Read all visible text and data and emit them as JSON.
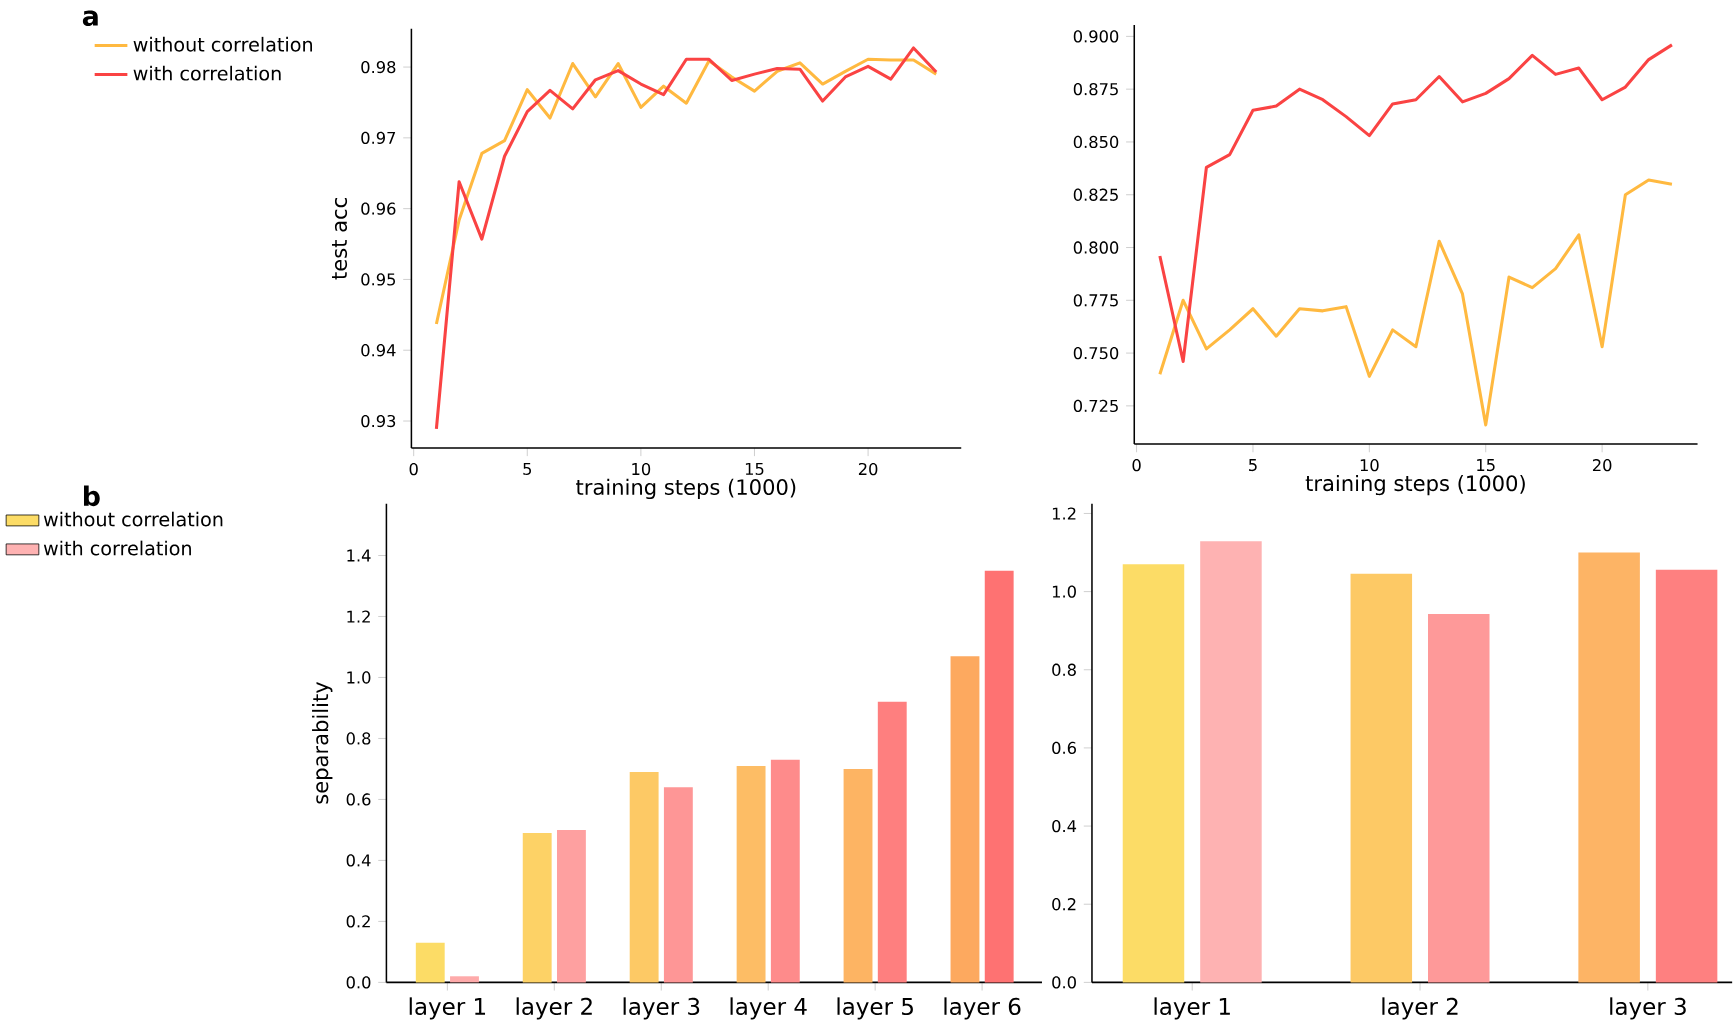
{
  "chart_data": [
    {
      "type": "line",
      "ylabel": "test acc",
      "xlabel": "training steps (1000)",
      "annotations": [
        "a"
      ],
      "legend": "top left",
      "xlim": [
        -0.1,
        24.1
      ],
      "ylim": [
        0.9262,
        0.9854
      ],
      "xticks": [
        0,
        5,
        10,
        15,
        20
      ],
      "yticks": [
        {
          "value": 0.93,
          "label": "0.93"
        },
        {
          "value": 0.94,
          "label": "0.94"
        },
        {
          "value": 0.95,
          "label": "0.95"
        },
        {
          "value": 0.96,
          "label": "0.96"
        },
        {
          "value": 0.97,
          "label": "0.97"
        },
        {
          "value": 0.98,
          "label": "0.98"
        }
      ],
      "x": [
        1,
        2,
        3,
        4,
        5,
        6,
        7,
        8,
        9,
        10,
        11,
        12,
        13,
        14,
        15,
        16,
        17,
        18,
        19,
        20,
        21,
        22,
        23
      ],
      "series": [
        {
          "name": "without correlation",
          "color": "#ffb940",
          "values": [
            0.9437,
            0.9584,
            0.9678,
            0.9696,
            0.9768,
            0.9728,
            0.9805,
            0.9758,
            0.9805,
            0.9743,
            0.9773,
            0.9749,
            0.9809,
            0.9786,
            0.9766,
            0.9794,
            0.9806,
            0.9776,
            0.9794,
            0.9811,
            0.981,
            0.981,
            0.979
          ]
        },
        {
          "name": "with correlation",
          "color": "#fa4343",
          "values": [
            0.9289,
            0.9638,
            0.9557,
            0.9674,
            0.9737,
            0.9767,
            0.9741,
            0.9782,
            0.9795,
            0.9776,
            0.9761,
            0.9811,
            0.9811,
            0.9781,
            0.979,
            0.9798,
            0.9797,
            0.9752,
            0.9786,
            0.9801,
            0.9783,
            0.9827,
            0.9793
          ]
        }
      ]
    },
    {
      "type": "line",
      "xlabel": "training steps (1000)",
      "xlim": [
        -0.1,
        24.1
      ],
      "ylim": [
        0.7069,
        0.9054
      ],
      "xticks": [
        0,
        5,
        10,
        15,
        20
      ],
      "yticks": [
        {
          "value": 0.725,
          "label": "0.725"
        },
        {
          "value": 0.75,
          "label": "0.750"
        },
        {
          "value": 0.775,
          "label": "0.775"
        },
        {
          "value": 0.8,
          "label": "0.800"
        },
        {
          "value": 0.825,
          "label": "0.825"
        },
        {
          "value": 0.85,
          "label": "0.850"
        },
        {
          "value": 0.875,
          "label": "0.875"
        },
        {
          "value": 0.9,
          "label": "0.900"
        }
      ],
      "x": [
        1,
        2,
        3,
        4,
        5,
        6,
        7,
        8,
        9,
        10,
        11,
        12,
        13,
        14,
        15,
        16,
        17,
        18,
        19,
        20,
        21,
        22,
        23
      ],
      "series": [
        {
          "color": "#ffb940",
          "values": [
            0.74,
            0.775,
            0.752,
            0.761,
            0.771,
            0.758,
            0.771,
            0.77,
            0.772,
            0.739,
            0.761,
            0.753,
            0.803,
            0.778,
            0.716,
            0.786,
            0.781,
            0.79,
            0.806,
            0.753,
            0.825,
            0.832,
            0.83
          ]
        },
        {
          "color": "#fa4343",
          "values": [
            0.796,
            0.746,
            0.838,
            0.844,
            0.865,
            0.867,
            0.875,
            0.87,
            0.862,
            0.853,
            0.868,
            0.87,
            0.881,
            0.869,
            0.873,
            0.88,
            0.891,
            0.882,
            0.885,
            0.87,
            0.876,
            0.889,
            0.896
          ]
        }
      ]
    },
    {
      "type": "bar",
      "ylabel": "separability",
      "annotations": [
        "b"
      ],
      "legend": "top left",
      "ylim": [
        0,
        1.57
      ],
      "yticks": [
        {
          "value": 0,
          "label": "0.0"
        },
        {
          "value": 0.2,
          "label": "0.2"
        },
        {
          "value": 0.4,
          "label": "0.4"
        },
        {
          "value": 0.6,
          "label": "0.6"
        },
        {
          "value": 0.8,
          "label": "0.8"
        },
        {
          "value": 1.0,
          "label": "1.0"
        },
        {
          "value": 1.2,
          "label": "1.2"
        },
        {
          "value": 1.4,
          "label": "1.4"
        }
      ],
      "categories": [
        "layer 1",
        "layer 2",
        "layer 3",
        "layer 4",
        "layer 5",
        "layer 6"
      ],
      "series": [
        {
          "name": "without correlation",
          "color": "#fcdc66",
          "colors": [
            "#fcdc66",
            "#fdd266",
            "#fdc965",
            "#fdbd65",
            "#fdb463",
            "#fda95f"
          ],
          "values": [
            0.13,
            0.49,
            0.69,
            0.71,
            0.7,
            1.07
          ]
        },
        {
          "name": "with correlation",
          "color": "#feb2b2",
          "colors": [
            "#feaaaa",
            "#fea0a0",
            "#fe9696",
            "#fe8b8b",
            "#fe7f7f",
            "#fe7272"
          ],
          "values": [
            0.02,
            0.5,
            0.64,
            0.73,
            0.92,
            1.35
          ]
        }
      ]
    },
    {
      "type": "bar",
      "ylim": [
        0,
        1.225
      ],
      "yticks": [
        {
          "value": 0,
          "label": "0.0"
        },
        {
          "value": 0.2,
          "label": "0.2"
        },
        {
          "value": 0.4,
          "label": "0.4"
        },
        {
          "value": 0.6,
          "label": "0.6"
        },
        {
          "value": 0.8,
          "label": "0.8"
        },
        {
          "value": 1.0,
          "label": "1.0"
        },
        {
          "value": 1.2,
          "label": "1.2"
        }
      ],
      "categories": [
        "layer 1",
        "layer 2",
        "layer 3"
      ],
      "series": [
        {
          "color": "#fcdc66",
          "colors": [
            "#fcdc66",
            "#fdc965",
            "#fdb465"
          ],
          "values": [
            1.07,
            1.046,
            1.1
          ]
        },
        {
          "color": "#feb2b2",
          "colors": [
            "#feb2b2",
            "#fe9999",
            "#fe8080"
          ],
          "values": [
            1.129,
            0.943,
            1.056
          ]
        }
      ]
    }
  ]
}
